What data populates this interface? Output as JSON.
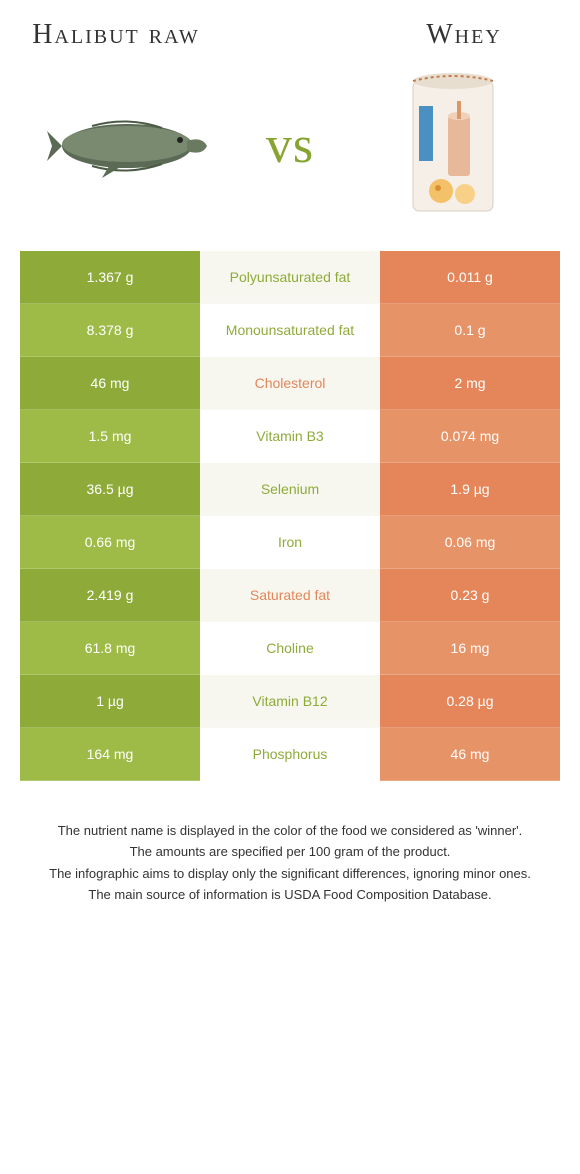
{
  "header": {
    "left_title": "Halibut raw",
    "right_title": "Whey"
  },
  "vs": "vs",
  "colors": {
    "left_bg_dark": "#8eab3a",
    "left_bg_light": "#9dbb46",
    "right_bg_dark": "#e4865a",
    "right_bg_light": "#e79368",
    "mid_color_left": "#8eab3a",
    "mid_color_right": "#e4865a",
    "vs_color": "#87a330"
  },
  "rows": [
    {
      "left": "1.367 g",
      "label": "Polyunsaturated fat",
      "right": "0.011 g",
      "winner": "left"
    },
    {
      "left": "8.378 g",
      "label": "Monounsaturated fat",
      "right": "0.1 g",
      "winner": "left"
    },
    {
      "left": "46 mg",
      "label": "Cholesterol",
      "right": "2 mg",
      "winner": "right"
    },
    {
      "left": "1.5 mg",
      "label": "Vitamin B3",
      "right": "0.074 mg",
      "winner": "left"
    },
    {
      "left": "36.5 µg",
      "label": "Selenium",
      "right": "1.9 µg",
      "winner": "left"
    },
    {
      "left": "0.66 mg",
      "label": "Iron",
      "right": "0.06 mg",
      "winner": "left"
    },
    {
      "left": "2.419 g",
      "label": "Saturated fat",
      "right": "0.23 g",
      "winner": "right"
    },
    {
      "left": "61.8 mg",
      "label": "Choline",
      "right": "16 mg",
      "winner": "left"
    },
    {
      "left": "1 µg",
      "label": "Vitamin B12",
      "right": "0.28 µg",
      "winner": "left"
    },
    {
      "left": "164 mg",
      "label": "Phosphorus",
      "right": "46 mg",
      "winner": "left"
    }
  ],
  "footnotes": [
    "The nutrient name is displayed in the color of the food we considered as 'winner'.",
    "The amounts are specified per 100 gram of the product.",
    "The infographic aims to display only the significant differences, ignoring minor ones.",
    "The main source of information is USDA Food Composition Database."
  ]
}
